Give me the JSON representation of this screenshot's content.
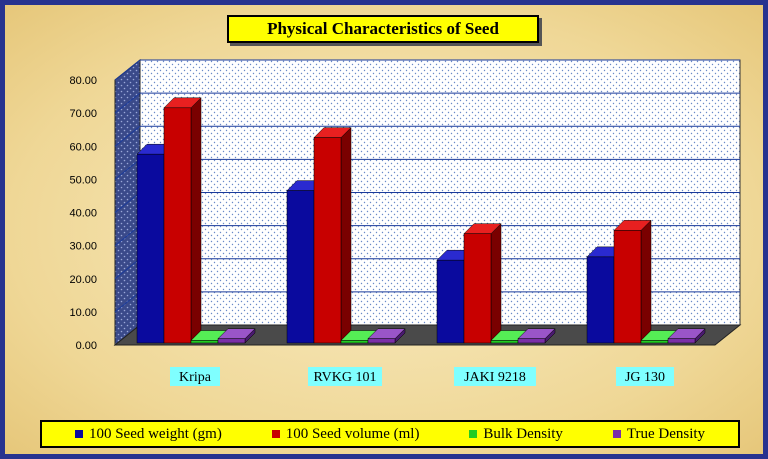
{
  "chart_data": {
    "type": "bar",
    "title": "Physical Characteristics of Seed",
    "categories": [
      "Kripa",
      "RVKG 101",
      "JAKI 9218",
      "JG 130"
    ],
    "series": [
      {
        "name": "100 Seed weight (gm)",
        "color": "#0a0a9e",
        "values": [
          57.0,
          46.0,
          25.0,
          26.0
        ]
      },
      {
        "name": "100 Seed volume (ml)",
        "color": "#c80000",
        "values": [
          71.0,
          62.0,
          33.0,
          34.0
        ]
      },
      {
        "name": "Bulk Density",
        "color": "#22cc22",
        "values": [
          0.75,
          0.75,
          0.75,
          0.75
        ]
      },
      {
        "name": "True Density",
        "color": "#7a2ea8",
        "values": [
          1.3,
          1.3,
          1.3,
          1.3
        ]
      }
    ],
    "yticks": [
      "0.00",
      "10.00",
      "20.00",
      "30.00",
      "40.00",
      "50.00",
      "60.00",
      "70.00",
      "80.00"
    ],
    "ylim": [
      0,
      80
    ],
    "grid": true,
    "legend_position": "bottom"
  }
}
